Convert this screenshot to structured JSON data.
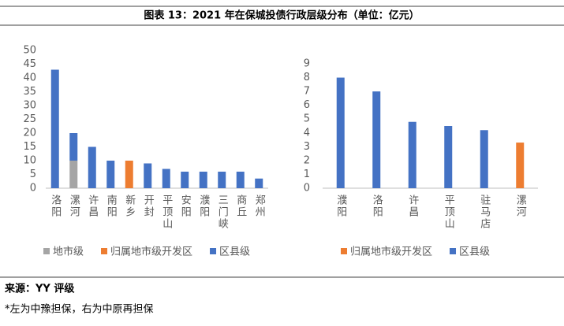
{
  "title": "图表 13：2021 年在保城投债行政层级分布（单位：亿元）",
  "source": "来源：YY 评级",
  "note": "*左为中豫担保，右为中原再担保",
  "chart_data": [
    {
      "type": "bar",
      "stacked": true,
      "grid": false,
      "categories": [
        "洛阳",
        "漯河",
        "许昌",
        "南阳",
        "新乡",
        "开封",
        "平顶山",
        "安阳",
        "濮阳",
        "三门峡",
        "商丘",
        "郑州"
      ],
      "series": [
        {
          "name": "地市级",
          "color": "#a5a5a5",
          "values": [
            null,
            10,
            null,
            null,
            null,
            null,
            null,
            null,
            null,
            null,
            null,
            null
          ]
        },
        {
          "name": "归属地市级开发区",
          "color": "#ed7d31",
          "values": [
            null,
            null,
            null,
            null,
            10,
            null,
            null,
            null,
            null,
            null,
            null,
            null
          ]
        },
        {
          "name": "区县级",
          "color": "#4472c4",
          "values": [
            43,
            10,
            15,
            10,
            null,
            9,
            7,
            6,
            6,
            6,
            6,
            3.5
          ]
        }
      ],
      "ylim": [
        0,
        50
      ],
      "yticks": [
        0,
        5,
        10,
        15,
        20,
        25,
        30,
        35,
        40,
        45,
        50
      ]
    },
    {
      "type": "bar",
      "stacked": true,
      "grid": false,
      "categories": [
        "濮阳",
        "洛阳",
        "许昌",
        "平顶山",
        "驻马店",
        "漯河"
      ],
      "series": [
        {
          "name": "归属地市级开发区",
          "color": "#ed7d31",
          "values": [
            null,
            null,
            null,
            null,
            null,
            3.3
          ]
        },
        {
          "name": "区县级",
          "color": "#4472c4",
          "values": [
            8,
            7,
            4.8,
            4.5,
            4.2,
            null
          ]
        }
      ],
      "ylim": [
        0,
        9
      ],
      "yticks": [
        0,
        1,
        2,
        3,
        4,
        5,
        6,
        7,
        8,
        9
      ]
    }
  ]
}
